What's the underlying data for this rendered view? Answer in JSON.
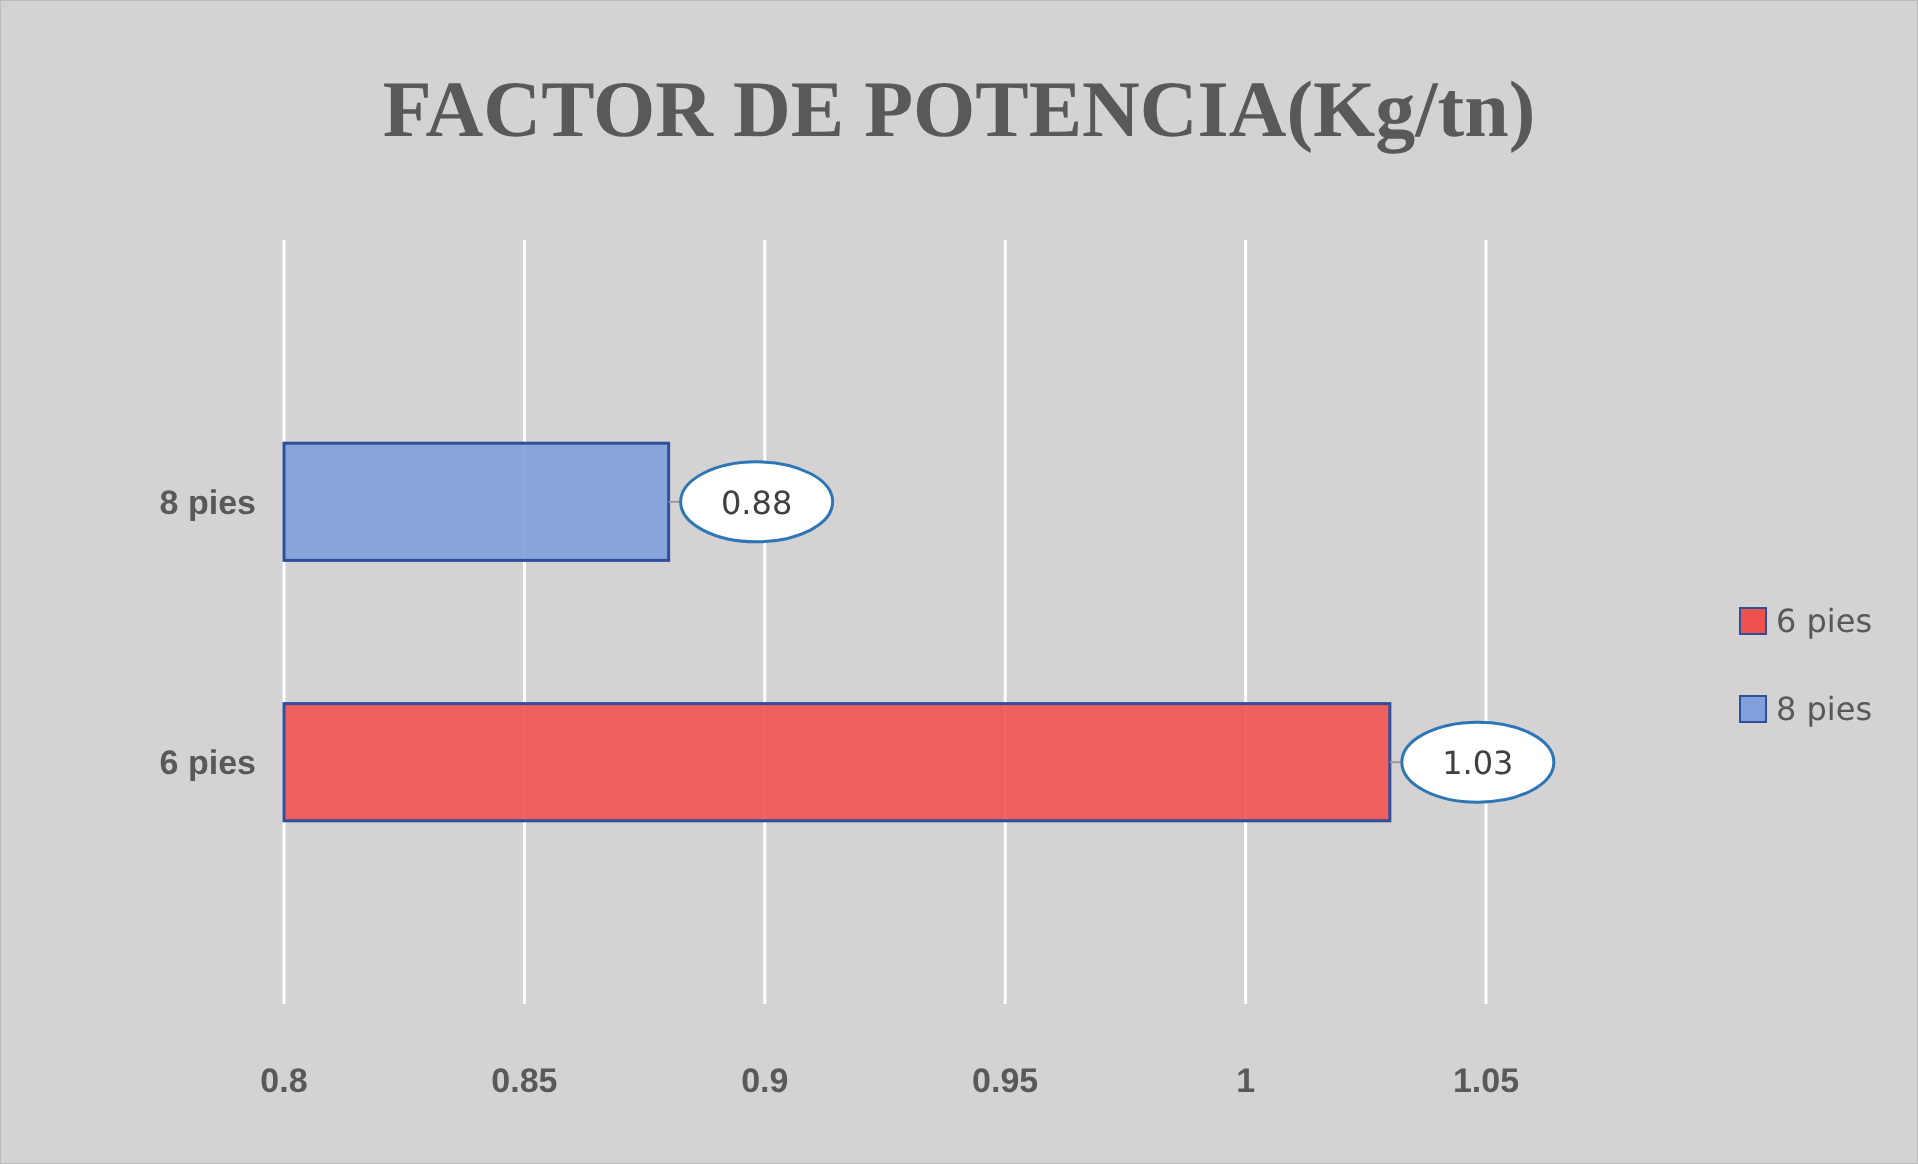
{
  "chart_data": {
    "type": "bar",
    "orientation": "horizontal",
    "title": "FACTOR DE POTENCIA(Kg/tn)",
    "categories": [
      "8 pies",
      "6 pies"
    ],
    "series": [
      {
        "name": "6 pies",
        "color": "#ef5350",
        "values": [
          null,
          1.03
        ]
      },
      {
        "name": "8 pies",
        "color": "#7fa0dc",
        "values": [
          0.88,
          null
        ]
      }
    ],
    "xlim": [
      0.8,
      1.05
    ],
    "xticks": [
      0.8,
      0.85,
      0.9,
      0.95,
      1,
      1.05
    ],
    "grid": "x",
    "legend": "right",
    "data_labels": true
  }
}
